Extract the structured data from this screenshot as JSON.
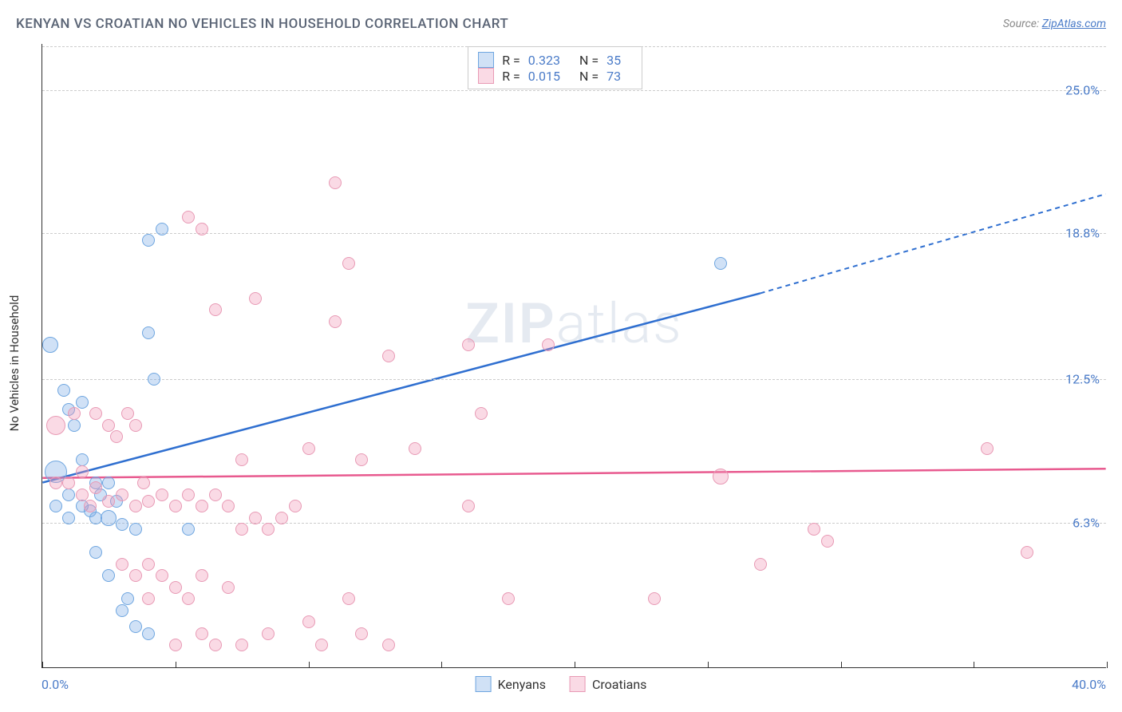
{
  "header": {
    "title": "KENYAN VS CROATIAN NO VEHICLES IN HOUSEHOLD CORRELATION CHART",
    "source_label": "Source:",
    "source_link": "ZipAtlas.com"
  },
  "chart": {
    "type": "scatter",
    "ylabel": "No Vehicles in Household",
    "xlim": [
      0,
      40
    ],
    "ylim": [
      0,
      27
    ],
    "xtick_positions": [
      0,
      5,
      10,
      15,
      20,
      25,
      30,
      35,
      40
    ],
    "x_min_label": "0.0%",
    "x_max_label": "40.0%",
    "yticks": [
      {
        "value": 6.3,
        "label": "6.3%"
      },
      {
        "value": 12.5,
        "label": "12.5%"
      },
      {
        "value": 18.8,
        "label": "18.8%"
      },
      {
        "value": 25.0,
        "label": "25.0%"
      }
    ],
    "grid_color": "#cccccc",
    "background_color": "#ffffff",
    "watermark": "ZIPatlas",
    "series": [
      {
        "name": "Kenyans",
        "fill_color": "rgba(120,170,230,0.35)",
        "stroke_color": "#6fa6e0",
        "line_color": "#2f6fd0",
        "R": "0.323",
        "N": "35",
        "trend": {
          "x1": 0,
          "y1": 8.0,
          "x2": 27,
          "y2": 16.2,
          "x2_dash": 40,
          "y2_dash": 20.5
        },
        "points": [
          {
            "x": 0.3,
            "y": 14.0,
            "r": 10
          },
          {
            "x": 0.5,
            "y": 8.5,
            "r": 14
          },
          {
            "x": 0.5,
            "y": 7.0,
            "r": 8
          },
          {
            "x": 0.8,
            "y": 12.0,
            "r": 8
          },
          {
            "x": 1.0,
            "y": 11.2,
            "r": 8
          },
          {
            "x": 1.0,
            "y": 7.5,
            "r": 8
          },
          {
            "x": 1.0,
            "y": 6.5,
            "r": 8
          },
          {
            "x": 1.2,
            "y": 10.5,
            "r": 8
          },
          {
            "x": 1.5,
            "y": 11.5,
            "r": 8
          },
          {
            "x": 1.5,
            "y": 9.0,
            "r": 8
          },
          {
            "x": 1.5,
            "y": 7.0,
            "r": 8
          },
          {
            "x": 1.8,
            "y": 6.8,
            "r": 8
          },
          {
            "x": 2.0,
            "y": 8.0,
            "r": 8
          },
          {
            "x": 2.0,
            "y": 6.5,
            "r": 8
          },
          {
            "x": 2.2,
            "y": 7.5,
            "r": 8
          },
          {
            "x": 2.5,
            "y": 6.5,
            "r": 10
          },
          {
            "x": 2.5,
            "y": 8.0,
            "r": 8
          },
          {
            "x": 2.8,
            "y": 7.2,
            "r": 8
          },
          {
            "x": 2.0,
            "y": 5.0,
            "r": 8
          },
          {
            "x": 2.5,
            "y": 4.0,
            "r": 8
          },
          {
            "x": 3.0,
            "y": 6.2,
            "r": 8
          },
          {
            "x": 3.5,
            "y": 6.0,
            "r": 8
          },
          {
            "x": 3.0,
            "y": 2.5,
            "r": 8
          },
          {
            "x": 3.2,
            "y": 3.0,
            "r": 8
          },
          {
            "x": 4.5,
            "y": 19.0,
            "r": 8
          },
          {
            "x": 4.0,
            "y": 18.5,
            "r": 8
          },
          {
            "x": 4.0,
            "y": 14.5,
            "r": 8
          },
          {
            "x": 4.2,
            "y": 12.5,
            "r": 8
          },
          {
            "x": 5.5,
            "y": 6.0,
            "r": 8
          },
          {
            "x": 3.5,
            "y": 1.8,
            "r": 8
          },
          {
            "x": 4.0,
            "y": 1.5,
            "r": 8
          },
          {
            "x": 25.5,
            "y": 17.5,
            "r": 8
          }
        ]
      },
      {
        "name": "Croatians",
        "fill_color": "rgba(240,150,180,0.35)",
        "stroke_color": "#e89ab5",
        "line_color": "#e85a8f",
        "R": "0.015",
        "N": "73",
        "trend": {
          "x1": 0,
          "y1": 8.2,
          "x2": 40,
          "y2": 8.6
        },
        "points": [
          {
            "x": 0.5,
            "y": 10.5,
            "r": 12
          },
          {
            "x": 0.5,
            "y": 8.0,
            "r": 8
          },
          {
            "x": 1.0,
            "y": 8.0,
            "r": 8
          },
          {
            "x": 1.2,
            "y": 11.0,
            "r": 8
          },
          {
            "x": 1.5,
            "y": 8.5,
            "r": 8
          },
          {
            "x": 1.5,
            "y": 7.5,
            "r": 8
          },
          {
            "x": 1.8,
            "y": 7.0,
            "r": 8
          },
          {
            "x": 2.0,
            "y": 11.0,
            "r": 8
          },
          {
            "x": 2.0,
            "y": 7.8,
            "r": 8
          },
          {
            "x": 2.5,
            "y": 10.5,
            "r": 8
          },
          {
            "x": 2.5,
            "y": 7.2,
            "r": 8
          },
          {
            "x": 2.8,
            "y": 10.0,
            "r": 8
          },
          {
            "x": 3.0,
            "y": 7.5,
            "r": 8
          },
          {
            "x": 3.0,
            "y": 4.5,
            "r": 8
          },
          {
            "x": 3.2,
            "y": 11.0,
            "r": 8
          },
          {
            "x": 3.5,
            "y": 10.5,
            "r": 8
          },
          {
            "x": 3.5,
            "y": 7.0,
            "r": 8
          },
          {
            "x": 3.5,
            "y": 4.0,
            "r": 8
          },
          {
            "x": 3.8,
            "y": 8.0,
            "r": 8
          },
          {
            "x": 4.0,
            "y": 7.2,
            "r": 8
          },
          {
            "x": 4.0,
            "y": 4.5,
            "r": 8
          },
          {
            "x": 4.0,
            "y": 3.0,
            "r": 8
          },
          {
            "x": 4.5,
            "y": 7.5,
            "r": 8
          },
          {
            "x": 4.5,
            "y": 4.0,
            "r": 8
          },
          {
            "x": 5.0,
            "y": 7.0,
            "r": 8
          },
          {
            "x": 5.0,
            "y": 3.5,
            "r": 8
          },
          {
            "x": 5.0,
            "y": 1.0,
            "r": 8
          },
          {
            "x": 5.5,
            "y": 19.5,
            "r": 8
          },
          {
            "x": 5.5,
            "y": 7.5,
            "r": 8
          },
          {
            "x": 5.5,
            "y": 3.0,
            "r": 8
          },
          {
            "x": 6.0,
            "y": 19.0,
            "r": 8
          },
          {
            "x": 6.0,
            "y": 7.0,
            "r": 8
          },
          {
            "x": 6.0,
            "y": 4.0,
            "r": 8
          },
          {
            "x": 6.0,
            "y": 1.5,
            "r": 8
          },
          {
            "x": 6.5,
            "y": 15.5,
            "r": 8
          },
          {
            "x": 6.5,
            "y": 7.5,
            "r": 8
          },
          {
            "x": 6.5,
            "y": 1.0,
            "r": 8
          },
          {
            "x": 7.0,
            "y": 7.0,
            "r": 8
          },
          {
            "x": 7.0,
            "y": 3.5,
            "r": 8
          },
          {
            "x": 7.5,
            "y": 9.0,
            "r": 8
          },
          {
            "x": 7.5,
            "y": 6.0,
            "r": 8
          },
          {
            "x": 7.5,
            "y": 1.0,
            "r": 8
          },
          {
            "x": 8.0,
            "y": 16.0,
            "r": 8
          },
          {
            "x": 8.0,
            "y": 6.5,
            "r": 8
          },
          {
            "x": 8.5,
            "y": 6.0,
            "r": 8
          },
          {
            "x": 8.5,
            "y": 1.5,
            "r": 8
          },
          {
            "x": 9.0,
            "y": 6.5,
            "r": 8
          },
          {
            "x": 9.5,
            "y": 7.0,
            "r": 8
          },
          {
            "x": 10.0,
            "y": 9.5,
            "r": 8
          },
          {
            "x": 10.0,
            "y": 2.0,
            "r": 8
          },
          {
            "x": 10.5,
            "y": 1.0,
            "r": 8
          },
          {
            "x": 11.0,
            "y": 21.0,
            "r": 8
          },
          {
            "x": 11.0,
            "y": 15.0,
            "r": 8
          },
          {
            "x": 11.5,
            "y": 17.5,
            "r": 8
          },
          {
            "x": 11.5,
            "y": 3.0,
            "r": 8
          },
          {
            "x": 12.0,
            "y": 9.0,
            "r": 8
          },
          {
            "x": 12.0,
            "y": 1.5,
            "r": 8
          },
          {
            "x": 13.0,
            "y": 13.5,
            "r": 8
          },
          {
            "x": 13.0,
            "y": 1.0,
            "r": 8
          },
          {
            "x": 14.0,
            "y": 9.5,
            "r": 8
          },
          {
            "x": 16.0,
            "y": 14.0,
            "r": 8
          },
          {
            "x": 16.0,
            "y": 7.0,
            "r": 8
          },
          {
            "x": 16.5,
            "y": 11.0,
            "r": 8
          },
          {
            "x": 17.5,
            "y": 3.0,
            "r": 8
          },
          {
            "x": 19.0,
            "y": 14.0,
            "r": 8
          },
          {
            "x": 23.0,
            "y": 3.0,
            "r": 8
          },
          {
            "x": 25.5,
            "y": 8.3,
            "r": 10
          },
          {
            "x": 27.0,
            "y": 4.5,
            "r": 8
          },
          {
            "x": 29.0,
            "y": 6.0,
            "r": 8
          },
          {
            "x": 29.5,
            "y": 5.5,
            "r": 8
          },
          {
            "x": 35.5,
            "y": 9.5,
            "r": 8
          },
          {
            "x": 37.0,
            "y": 5.0,
            "r": 8
          }
        ]
      }
    ]
  }
}
